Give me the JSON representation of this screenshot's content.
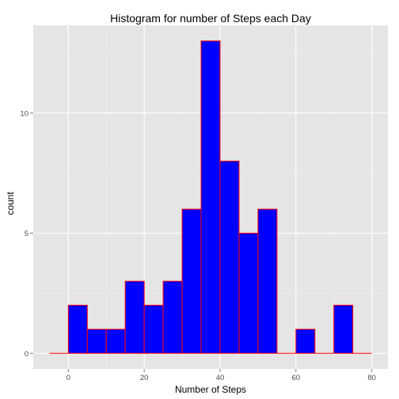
{
  "chart_data": {
    "type": "bar",
    "title": "Histogram for number of Steps each Day",
    "xlabel": "Number of Steps",
    "ylabel": "count",
    "bin_width": 5,
    "bins": [
      {
        "start": -5,
        "end": 0,
        "count": 0
      },
      {
        "start": 0,
        "end": 5,
        "count": 2
      },
      {
        "start": 5,
        "end": 10,
        "count": 1
      },
      {
        "start": 10,
        "end": 15,
        "count": 1
      },
      {
        "start": 15,
        "end": 20,
        "count": 3
      },
      {
        "start": 20,
        "end": 25,
        "count": 2
      },
      {
        "start": 25,
        "end": 30,
        "count": 3
      },
      {
        "start": 30,
        "end": 35,
        "count": 6
      },
      {
        "start": 35,
        "end": 40,
        "count": 13
      },
      {
        "start": 40,
        "end": 45,
        "count": 8
      },
      {
        "start": 45,
        "end": 50,
        "count": 5
      },
      {
        "start": 50,
        "end": 55,
        "count": 6
      },
      {
        "start": 55,
        "end": 60,
        "count": 0
      },
      {
        "start": 60,
        "end": 65,
        "count": 1
      },
      {
        "start": 65,
        "end": 70,
        "count": 0
      },
      {
        "start": 70,
        "end": 75,
        "count": 2
      },
      {
        "start": 75,
        "end": 80,
        "count": 0
      }
    ],
    "xlim": [
      -9.25,
      84.25
    ],
    "ylim": [
      -0.65,
      13.65
    ],
    "x_ticks": [
      0,
      20,
      40,
      60,
      80
    ],
    "y_ticks": [
      0,
      5,
      10
    ],
    "x_tick_labels": [
      "0",
      "20",
      "40",
      "60",
      "80"
    ],
    "y_tick_labels": [
      "0",
      "5",
      "10"
    ],
    "grid": true,
    "colors": {
      "panel_background": "#e5e5e5",
      "grid_major": "#ffffff",
      "grid_minor": "#f2f2f2",
      "bar_fill": "#0000ff",
      "bar_outline": "#ff0000",
      "tick": "#7f7f7f"
    }
  }
}
